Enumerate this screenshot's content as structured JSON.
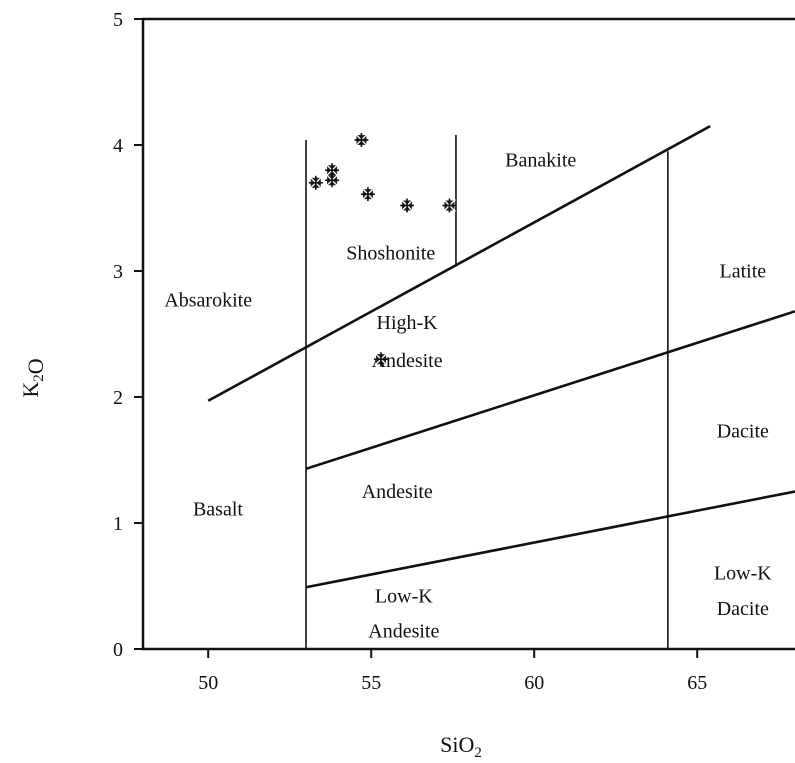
{
  "chart_data": {
    "type": "scatter",
    "xlabel": "SiO2",
    "ylabel": "K2O",
    "xlim": [
      48.0,
      68.0
    ],
    "ylim": [
      0,
      5
    ],
    "grid": false,
    "legend": "none",
    "x_ticks": [
      50,
      55,
      60,
      65
    ],
    "y_ticks": [
      0,
      1,
      2,
      3,
      4,
      5
    ],
    "boundary_lines": [
      {
        "points": [
          [
            50,
            1.97
          ],
          [
            65.4,
            4.15
          ]
        ]
      },
      {
        "points": [
          [
            53,
            1.43
          ],
          [
            68,
            2.68
          ]
        ]
      },
      {
        "points": [
          [
            53,
            0.49
          ],
          [
            68,
            1.25
          ]
        ]
      },
      {
        "points": [
          [
            53,
            0
          ],
          [
            53,
            4.04
          ]
        ]
      },
      {
        "points": [
          [
            57.6,
            3.05
          ],
          [
            57.6,
            4.08
          ]
        ]
      },
      {
        "points": [
          [
            64.1,
            0
          ],
          [
            64.1,
            3.95
          ]
        ]
      }
    ],
    "region_labels": [
      {
        "text": "Banakite",
        "x": 60.2,
        "y": 3.83
      },
      {
        "text": "Shoshonite",
        "x": 55.6,
        "y": 3.09
      },
      {
        "text": "Absarokite",
        "x": 50.0,
        "y": 2.72
      },
      {
        "text": "Latite",
        "x": 66.4,
        "y": 2.95
      },
      {
        "text": "High-K",
        "x": 56.1,
        "y": 2.54
      },
      {
        "text": "Andesite",
        "x": 56.1,
        "y": 2.24
      },
      {
        "text": "Dacite",
        "x": 66.4,
        "y": 1.68
      },
      {
        "text": "Andesite",
        "x": 55.8,
        "y": 1.2
      },
      {
        "text": "Basalt",
        "x": 50.3,
        "y": 1.06
      },
      {
        "text": "Low-K",
        "x": 56.0,
        "y": 0.37
      },
      {
        "text": "Andesite",
        "x": 56.0,
        "y": 0.09
      },
      {
        "text": "Low-K",
        "x": 66.4,
        "y": 0.55
      },
      {
        "text": "Dacite",
        "x": 66.4,
        "y": 0.27
      }
    ],
    "points": [
      {
        "x": 53.3,
        "y": 3.7
      },
      {
        "x": 53.8,
        "y": 3.8
      },
      {
        "x": 53.8,
        "y": 3.72
      },
      {
        "x": 54.7,
        "y": 4.04
      },
      {
        "x": 54.9,
        "y": 3.61
      },
      {
        "x": 56.1,
        "y": 3.52
      },
      {
        "x": 57.4,
        "y": 3.52
      },
      {
        "x": 55.3,
        "y": 2.3
      }
    ]
  }
}
